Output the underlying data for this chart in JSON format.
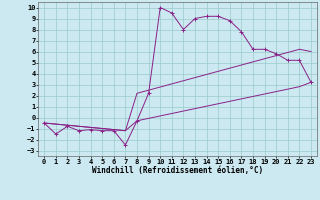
{
  "xlabel": "Windchill (Refroidissement éolien,°C)",
  "background_color": "#cce8f0",
  "grid_color": "#99cccc",
  "line_color": "#882288",
  "xlim": [
    -0.5,
    23.5
  ],
  "ylim": [
    -3.5,
    10.5
  ],
  "xticks": [
    0,
    1,
    2,
    3,
    4,
    5,
    6,
    7,
    8,
    9,
    10,
    11,
    12,
    13,
    14,
    15,
    16,
    17,
    18,
    19,
    20,
    21,
    22,
    23
  ],
  "yticks": [
    -3,
    -2,
    -1,
    0,
    1,
    2,
    3,
    4,
    5,
    6,
    7,
    8,
    9,
    10
  ],
  "line1_x": [
    0,
    1,
    2,
    3,
    4,
    5,
    6,
    7,
    8,
    9,
    10,
    11,
    12,
    13,
    14,
    15,
    16,
    17,
    18,
    19,
    20,
    21,
    22,
    23
  ],
  "line1_y": [
    -0.5,
    -1.5,
    -0.8,
    -1.2,
    -1.1,
    -1.2,
    -1.2,
    -2.5,
    -0.3,
    2.2,
    10.0,
    9.5,
    8.0,
    9.0,
    9.2,
    9.2,
    8.8,
    7.8,
    6.2,
    6.2,
    5.8,
    5.2,
    5.2,
    3.2
  ],
  "line2_x": [
    0,
    7,
    8,
    22,
    23
  ],
  "line2_y": [
    -0.5,
    -1.2,
    2.2,
    6.2,
    6.0
  ],
  "line3_x": [
    0,
    7,
    8,
    22,
    23
  ],
  "line3_y": [
    -0.5,
    -1.2,
    -0.3,
    2.8,
    3.2
  ],
  "font_size_ticks": 5,
  "font_size_xlabel": 5.5
}
